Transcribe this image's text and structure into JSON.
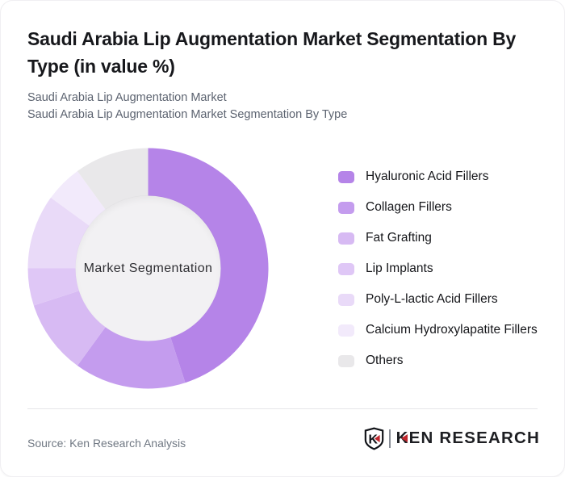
{
  "header": {
    "title": "Saudi Arabia Lip Augmentation Market Segmentation By Type (in value %)",
    "subtitle_line1": "Saudi Arabia Lip Augmentation Market",
    "subtitle_line2": "Saudi Arabia Lip Augmentation Market Segmentation By Type"
  },
  "chart_data": {
    "type": "pie",
    "variant": "donut",
    "title": "Saudi Arabia Lip Augmentation Market Segmentation By Type (in value %)",
    "center_label": "Market Segmentation",
    "unit": "%",
    "labels": [
      "Hyaluronic Acid Fillers",
      "Collagen Fillers",
      "Fat Grafting",
      "Lip Implants",
      "Poly-L-lactic Acid Fillers",
      "Calcium Hydroxylapatite Fillers",
      "Others"
    ],
    "values": [
      45,
      15,
      10,
      5,
      10,
      5,
      10
    ],
    "colors": [
      "#b584e8",
      "#c49cee",
      "#d7baf3",
      "#dfc7f6",
      "#e9daf8",
      "#f2eafb",
      "#e9e8ea"
    ],
    "center_fill": "#f2f1f3",
    "start_angle_deg": 0,
    "direction": "clockwise",
    "inner_radius_ratio": 0.6,
    "legend_position": "right",
    "data_labels_shown": false
  },
  "footer": {
    "source": "Source: Ken Research Analysis",
    "logo_text": "KEN RESEARCH",
    "logo_monogram": "K",
    "brand_red": "#c0272d",
    "logo_dark": "#111318"
  }
}
